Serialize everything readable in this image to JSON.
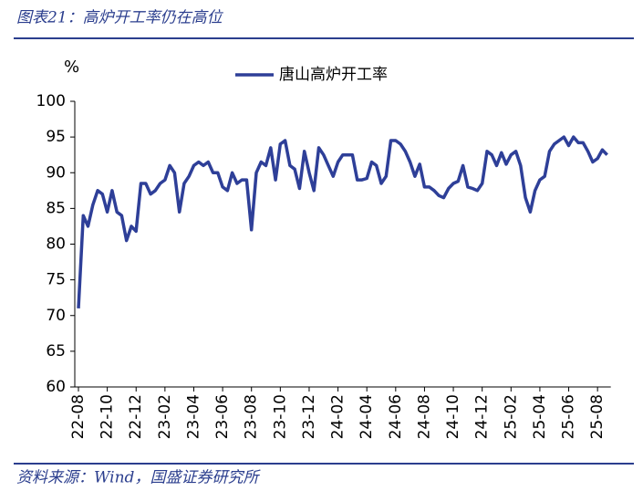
{
  "chart_data": {
    "type": "line",
    "title": "图表21：高炉开工率仍在高位",
    "source": "资料来源：Wind，国盛证券研究所",
    "ylabel": "%",
    "categories": [
      "22-08",
      null,
      null,
      null,
      null,
      null,
      "22-10",
      null,
      null,
      null,
      null,
      null,
      "22-12",
      null,
      null,
      null,
      null,
      null,
      "23-02",
      null,
      null,
      null,
      null,
      null,
      "23-04",
      null,
      null,
      null,
      null,
      null,
      "23-06",
      null,
      null,
      null,
      null,
      null,
      "23-08",
      null,
      null,
      null,
      null,
      null,
      "23-10",
      null,
      null,
      null,
      null,
      null,
      "23-12",
      null,
      null,
      null,
      null,
      null,
      "24-02",
      null,
      null,
      null,
      null,
      null,
      "24-04",
      null,
      null,
      null,
      null,
      null,
      "24-06",
      null,
      null,
      null,
      null,
      null,
      "24-08",
      null,
      null,
      null,
      null,
      null,
      "24-10",
      null,
      null,
      null,
      null,
      null,
      "24-12",
      null,
      null,
      null,
      null,
      null,
      "25-02",
      null,
      null,
      null,
      null,
      null,
      "25-04",
      null,
      null,
      null,
      null,
      null,
      "25-06",
      null,
      null,
      null,
      null,
      null,
      "25-08",
      null,
      null
    ],
    "series": [
      {
        "name": "唐山高炉开工率",
        "color": "#2e3f98",
        "values": [
          71,
          84,
          82.5,
          85.5,
          87.5,
          87,
          84.5,
          87.5,
          84.5,
          84,
          80.5,
          82.5,
          81.8,
          88.5,
          88.5,
          87,
          87.5,
          88.5,
          89,
          91,
          90,
          84.5,
          88.5,
          89.5,
          91,
          91.5,
          91,
          91.5,
          90,
          90,
          88,
          87.5,
          90,
          88.5,
          89,
          89,
          82,
          90,
          91.5,
          91,
          93.5,
          89,
          94,
          94.5,
          91,
          90.5,
          87.8,
          93,
          90,
          87.5,
          93.5,
          92.5,
          91,
          89.5,
          91.5,
          92.5,
          92.5,
          92.5,
          89,
          89,
          89.2,
          91.5,
          91,
          88.5,
          89.5,
          94.5,
          94.5,
          94,
          93,
          91.5,
          89.5,
          91.2,
          88,
          88,
          87.5,
          86.8,
          86.5,
          87.8,
          88.5,
          88.8,
          91,
          88,
          87.8,
          87.5,
          88.5,
          93,
          92.5,
          91,
          92.8,
          91.2,
          92.5,
          93,
          91,
          86.5,
          84.5,
          87.5,
          89,
          89.5,
          93,
          94,
          94.5,
          95,
          93.8,
          95,
          94.2,
          94.2,
          93,
          91.5,
          92,
          93.2,
          92.5
        ]
      }
    ],
    "ylim": [
      60,
      100
    ],
    "yticks": [
      60,
      65,
      70,
      75,
      80,
      85,
      90,
      95,
      100
    ],
    "legend": "top"
  }
}
